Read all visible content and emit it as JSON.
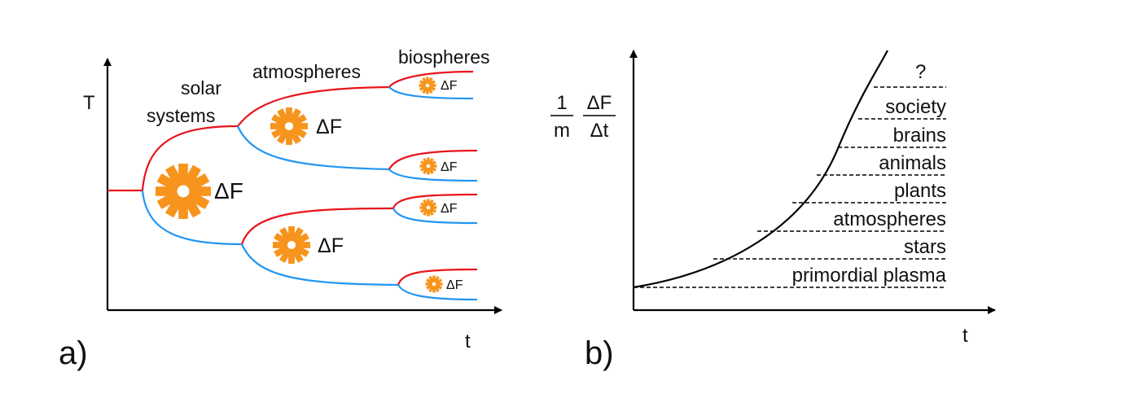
{
  "colors": {
    "axis": "#000000",
    "upper_branch": "#e8141b",
    "lower_branch": "#2196f3",
    "gear": "#f7941d",
    "dash": "#000000"
  },
  "panel_a": {
    "label": "a)",
    "y_axis_label": "T",
    "x_axis_label": "t",
    "stages": {
      "solar_line1": "solar",
      "solar_line2": "systems",
      "atmospheres": "atmospheres",
      "biospheres": "biospheres"
    },
    "gear_labels": {
      "big": "ΔF",
      "mid_top": "ΔF",
      "mid_bottom": "ΔF",
      "small_1": "ΔF",
      "small_2": "ΔF",
      "small_3": "ΔF",
      "small_4": "ΔF"
    },
    "icon": "gear-icon"
  },
  "panel_b": {
    "label": "b)",
    "x_axis_label": "t",
    "y_axis_label": {
      "numerator_left": "1",
      "denominator_left": "m",
      "numerator_right": "ΔF",
      "denominator_right": "Δt"
    },
    "question_mark": "?",
    "levels": [
      "society",
      "brains",
      "animals",
      "plants",
      "atmospheres",
      "stars",
      "primordial plasma"
    ]
  }
}
